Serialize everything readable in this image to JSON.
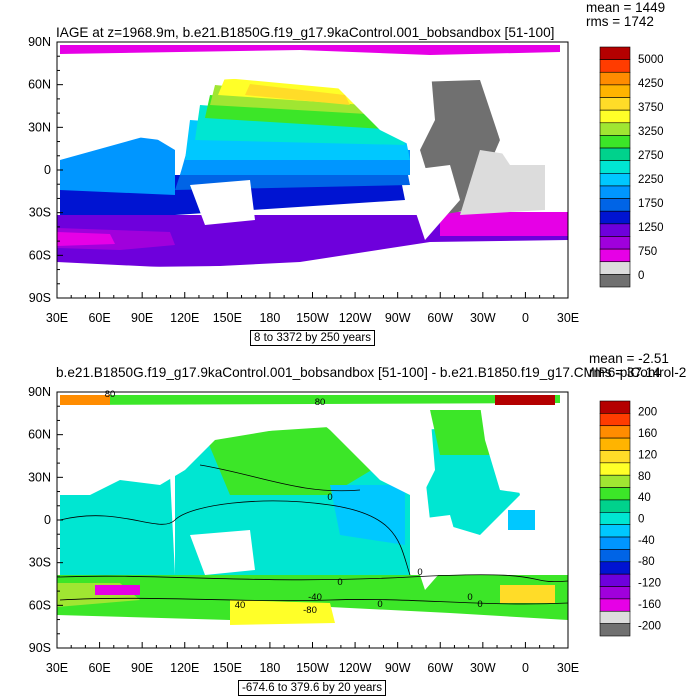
{
  "chart_data": [
    {
      "type": "heatmap",
      "title": "IAGE at z=1968.9m, b.e21.B1850G.f19_g17.9kaControl.001_bobsandbox [51-100]",
      "mean_label": "mean = 1449",
      "rms_label": "rms = 1742",
      "range_label": "8 to 3372 by 250 years",
      "x_ticks": [
        "30E",
        "60E",
        "90E",
        "120E",
        "150E",
        "180",
        "150W",
        "120W",
        "90W",
        "60W",
        "30W",
        "0",
        "30E"
      ],
      "y_ticks": [
        "90N",
        "60N",
        "30N",
        "0",
        "30S",
        "60S",
        "90S"
      ],
      "colorbar_labels": [
        "5000",
        "4250",
        "3750",
        "3250",
        "2750",
        "2250",
        "1750",
        "1250",
        "750",
        "0"
      ],
      "colors": [
        "#b40000",
        "#ff3c00",
        "#ff8c00",
        "#ffb400",
        "#ffdc28",
        "#ffff28",
        "#a0e632",
        "#3ce628",
        "#00d28c",
        "#00e6d2",
        "#00c8ff",
        "#0096ff",
        "#0064e6",
        "#0014d2",
        "#6e00dc",
        "#a000dc",
        "#e600e6",
        "#dcdcdc",
        "#707070"
      ]
    },
    {
      "type": "heatmap",
      "title": "b.e21.B1850G.f19_g17.9kaControl.001_bobsandbox [51-100] - b.e21.B1850.f19_g17.CMIP6-piControl-2",
      "mean_label": "mean = -2.51",
      "rms_label": "rms = 37.14",
      "range_label": "-674.6 to 379.6 by 20 years",
      "contour_labels": [
        "80",
        "80",
        "40",
        "0",
        "0",
        "0",
        "0",
        "0",
        "0",
        "-40",
        "-80"
      ],
      "x_ticks": [
        "30E",
        "60E",
        "90E",
        "120E",
        "150E",
        "180",
        "150W",
        "120W",
        "90W",
        "60W",
        "30W",
        "0",
        "30E"
      ],
      "y_ticks": [
        "90N",
        "60N",
        "30N",
        "0",
        "30S",
        "60S",
        "90S"
      ],
      "colorbar_labels": [
        "200",
        "160",
        "120",
        "80",
        "40",
        "0",
        "-40",
        "-80",
        "-120",
        "-160",
        "-200"
      ],
      "colors": [
        "#b40000",
        "#ff3c00",
        "#ff8c00",
        "#ffb400",
        "#ffdc28",
        "#ffff28",
        "#a0e632",
        "#3ce628",
        "#00d28c",
        "#00e6d2",
        "#00c8ff",
        "#0096ff",
        "#0064e6",
        "#0014d2",
        "#6e00dc",
        "#a000dc",
        "#e600e6",
        "#dcdcdc",
        "#707070"
      ]
    }
  ]
}
